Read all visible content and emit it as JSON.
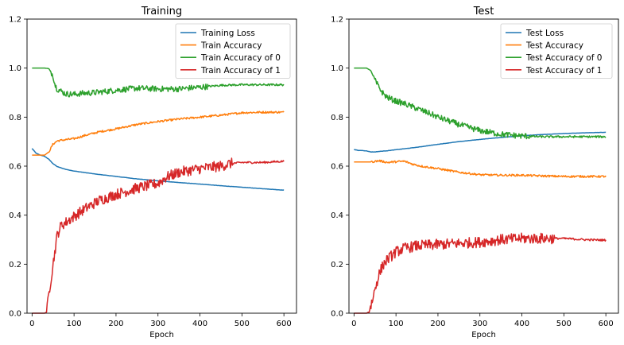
{
  "chart_data": [
    {
      "type": "line",
      "title": "Training",
      "xlabel": "Epoch",
      "ylabel": "",
      "xlim": [
        -12,
        630
      ],
      "ylim": [
        0,
        1.2
      ],
      "x_ticks": [
        0,
        100,
        200,
        300,
        400,
        500,
        600
      ],
      "y_ticks": [
        0.0,
        0.2,
        0.4,
        0.6,
        0.8,
        1.0,
        1.2
      ],
      "grid": false,
      "legend": "top-right",
      "series": [
        {
          "name": "Training Loss",
          "color": "#1f77b4",
          "x": [
            0,
            10,
            20,
            30,
            40,
            50,
            60,
            80,
            100,
            150,
            200,
            250,
            300,
            350,
            400,
            450,
            500,
            550,
            600
          ],
          "y": [
            0.672,
            0.652,
            0.645,
            0.64,
            0.628,
            0.61,
            0.598,
            0.587,
            0.58,
            0.568,
            0.558,
            0.548,
            0.54,
            0.533,
            0.527,
            0.52,
            0.514,
            0.508,
            0.502
          ]
        },
        {
          "name": "Train Accuracy",
          "color": "#ff7f0e",
          "x": [
            0,
            10,
            20,
            30,
            40,
            50,
            60,
            80,
            100,
            130,
            160,
            200,
            250,
            300,
            350,
            400,
            450,
            500,
            550,
            600
          ],
          "y": [
            0.645,
            0.645,
            0.645,
            0.645,
            0.658,
            0.69,
            0.703,
            0.708,
            0.712,
            0.727,
            0.74,
            0.752,
            0.77,
            0.782,
            0.792,
            0.8,
            0.808,
            0.818,
            0.82,
            0.82
          ]
        },
        {
          "name": "Train Accuracy of 0",
          "color": "#2ca02c",
          "x": [
            0,
            10,
            20,
            30,
            40,
            50,
            55,
            60,
            70,
            80,
            100,
            120,
            150,
            200,
            250,
            300,
            350,
            400,
            450,
            500,
            550,
            600
          ],
          "y": [
            1.0,
            1.0,
            1.0,
            1.0,
            0.998,
            0.97,
            0.93,
            0.915,
            0.905,
            0.895,
            0.893,
            0.897,
            0.9,
            0.91,
            0.918,
            0.915,
            0.915,
            0.922,
            0.93,
            0.932,
            0.932,
            0.932
          ]
        },
        {
          "name": "Train Accuracy of 1",
          "color": "#d62728",
          "x": [
            0,
            10,
            20,
            30,
            35,
            40,
            45,
            50,
            55,
            60,
            65,
            70,
            80,
            100,
            130,
            160,
            200,
            250,
            300,
            320,
            350,
            400,
            450,
            470,
            500,
            550,
            600
          ],
          "y": [
            0.0,
            0.0,
            0.0,
            0.0,
            0.005,
            0.08,
            0.14,
            0.2,
            0.26,
            0.32,
            0.34,
            0.36,
            0.37,
            0.395,
            0.43,
            0.46,
            0.485,
            0.51,
            0.53,
            0.555,
            0.575,
            0.59,
            0.6,
            0.61,
            0.615,
            0.615,
            0.62
          ]
        }
      ]
    },
    {
      "type": "line",
      "title": "Test",
      "xlabel": "Epoch",
      "ylabel": "",
      "xlim": [
        -12,
        630
      ],
      "ylim": [
        0,
        1.2
      ],
      "x_ticks": [
        0,
        100,
        200,
        300,
        400,
        500,
        600
      ],
      "y_ticks": [
        0.0,
        0.2,
        0.4,
        0.6,
        0.8,
        1.0,
        1.2
      ],
      "grid": false,
      "legend": "top-right",
      "series": [
        {
          "name": "Test Loss",
          "color": "#1f77b4",
          "x": [
            0,
            10,
            20,
            30,
            40,
            50,
            60,
            80,
            100,
            150,
            200,
            250,
            300,
            350,
            400,
            450,
            500,
            550,
            600
          ],
          "y": [
            0.668,
            0.664,
            0.664,
            0.662,
            0.658,
            0.658,
            0.66,
            0.663,
            0.667,
            0.677,
            0.689,
            0.7,
            0.709,
            0.717,
            0.724,
            0.729,
            0.733,
            0.736,
            0.738
          ]
        },
        {
          "name": "Test Accuracy",
          "color": "#ff7f0e",
          "x": [
            0,
            20,
            40,
            60,
            80,
            100,
            120,
            140,
            160,
            200,
            250,
            300,
            350,
            400,
            450,
            500,
            550,
            600
          ],
          "y": [
            0.617,
            0.617,
            0.617,
            0.622,
            0.615,
            0.618,
            0.62,
            0.608,
            0.6,
            0.59,
            0.575,
            0.565,
            0.563,
            0.563,
            0.56,
            0.558,
            0.558,
            0.558
          ]
        },
        {
          "name": "Test Accuracy of 0",
          "color": "#2ca02c",
          "x": [
            0,
            10,
            20,
            30,
            40,
            50,
            60,
            70,
            80,
            100,
            120,
            150,
            180,
            200,
            250,
            300,
            350,
            400,
            450,
            500,
            550,
            600
          ],
          "y": [
            1.0,
            1.0,
            1.0,
            1.0,
            0.99,
            0.95,
            0.92,
            0.895,
            0.88,
            0.865,
            0.855,
            0.835,
            0.815,
            0.8,
            0.77,
            0.745,
            0.73,
            0.723,
            0.72,
            0.72,
            0.72,
            0.72
          ]
        },
        {
          "name": "Test Accuracy of 1",
          "color": "#d62728",
          "x": [
            0,
            10,
            20,
            30,
            35,
            40,
            45,
            50,
            55,
            60,
            65,
            70,
            80,
            90,
            100,
            120,
            150,
            200,
            250,
            300,
            350,
            400,
            450,
            500,
            550,
            600
          ],
          "y": [
            0.0,
            0.0,
            0.0,
            0.0,
            0.005,
            0.03,
            0.06,
            0.1,
            0.13,
            0.16,
            0.18,
            0.2,
            0.22,
            0.235,
            0.25,
            0.265,
            0.275,
            0.28,
            0.285,
            0.29,
            0.3,
            0.305,
            0.305,
            0.305,
            0.3,
            0.298
          ]
        }
      ]
    }
  ]
}
